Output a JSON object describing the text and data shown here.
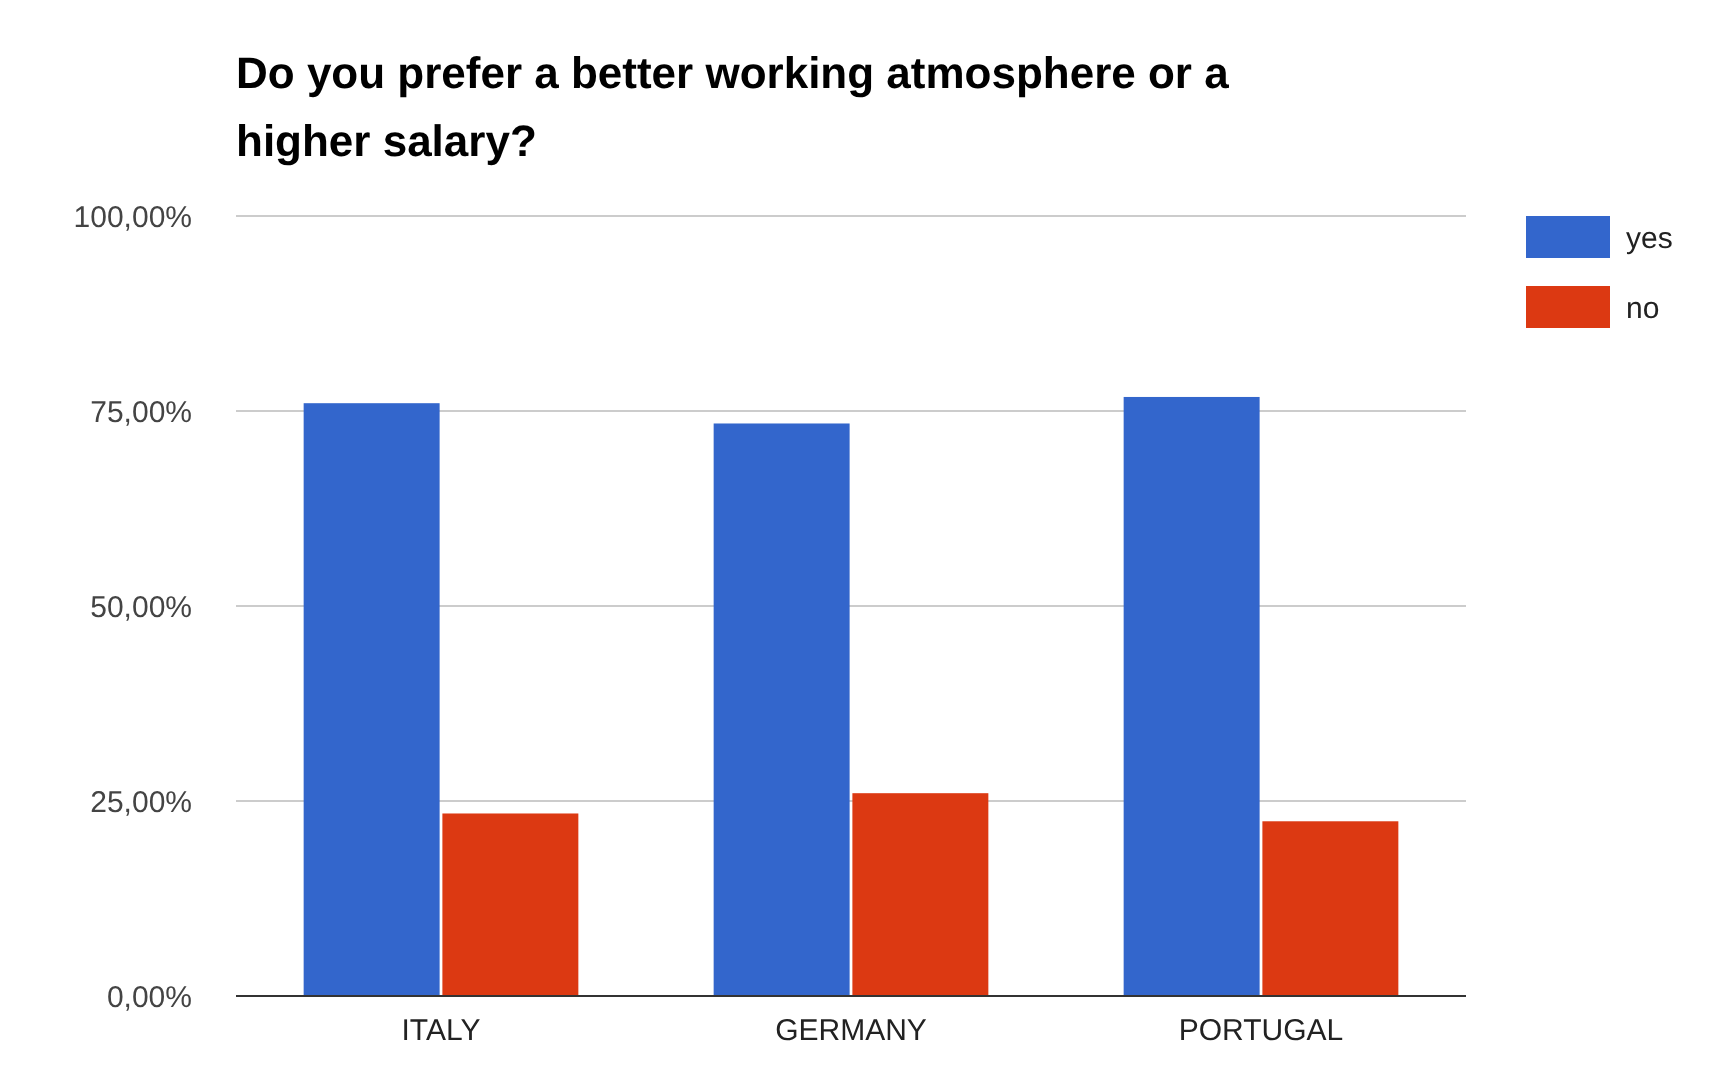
{
  "chart_data": {
    "type": "bar",
    "title": "Do you prefer a better working atmosphere or a higher salary?",
    "categories": [
      "ITALY",
      "GERMANY",
      "PORTUGAL"
    ],
    "series": [
      {
        "name": "yes",
        "color": "#3366cc",
        "values": [
          76,
          73.4,
          76.8
        ]
      },
      {
        "name": "no",
        "color": "#dc3912",
        "values": [
          23.4,
          26,
          22.4
        ]
      }
    ],
    "ylim": [
      0,
      100
    ],
    "yticks": [
      {
        "value": 0,
        "label": "0,00%"
      },
      {
        "value": 25,
        "label": "25,00%"
      },
      {
        "value": 50,
        "label": "50,00%"
      },
      {
        "value": 75,
        "label": "75,00%"
      },
      {
        "value": 100,
        "label": "100,00%"
      }
    ],
    "grid": true,
    "legend": "right"
  }
}
